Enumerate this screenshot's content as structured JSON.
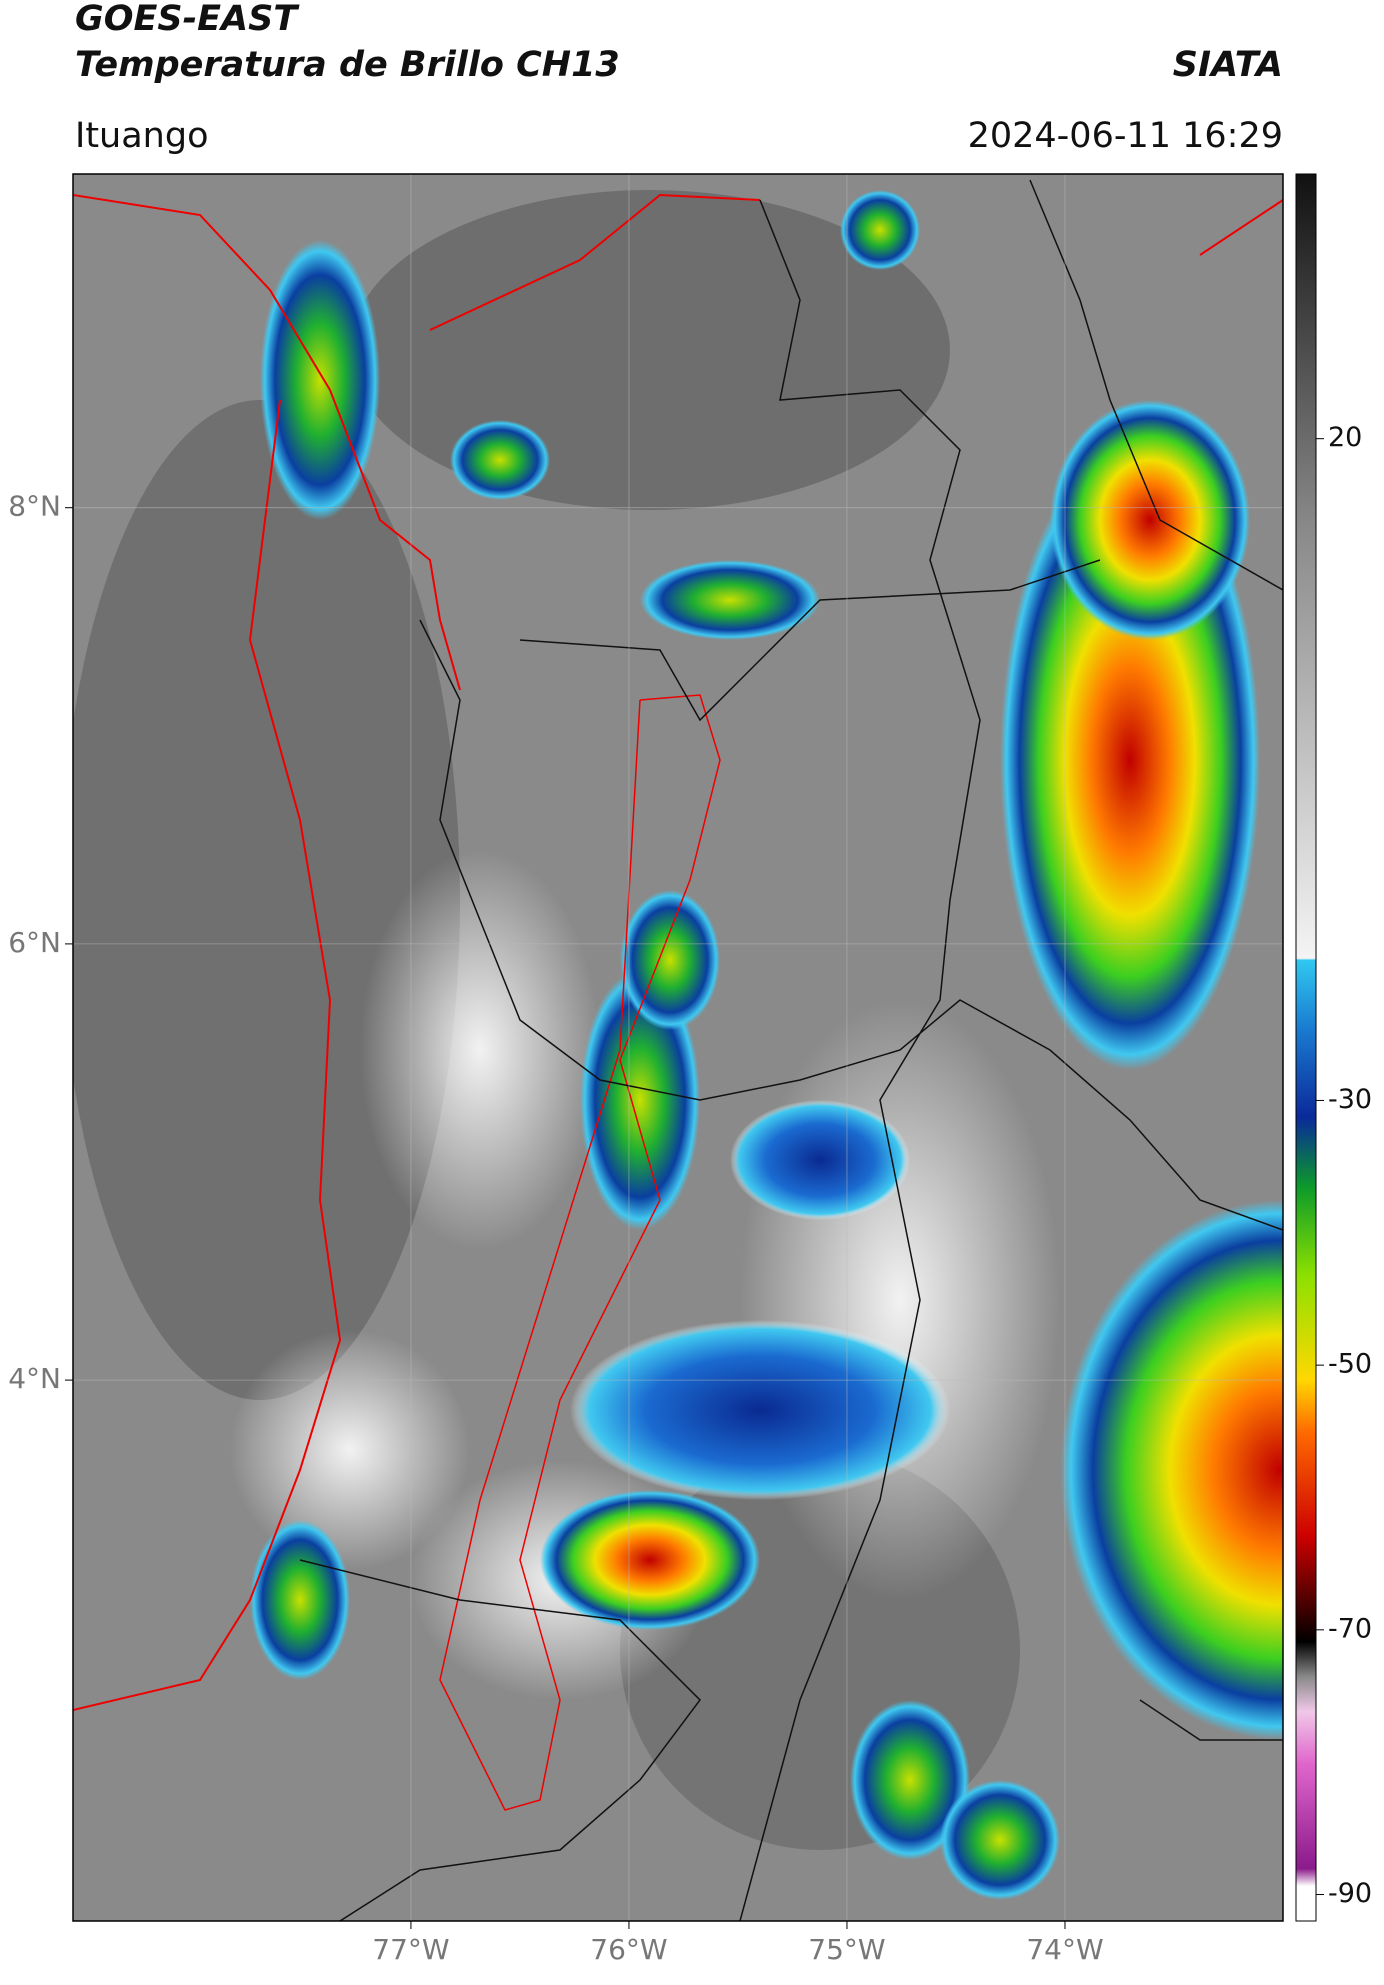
{
  "header": {
    "title": "GOES-EAST",
    "subtitle": "Temperatura de Brillo CH13",
    "source": "SIATA",
    "location": "Ituango",
    "datetime": "2024-06-11 16:29"
  },
  "map": {
    "xlim": [
      -78.55,
      -73.0
    ],
    "ylim": [
      1.52,
      9.53
    ],
    "xticks": [
      {
        "value": -77,
        "label": "77°W"
      },
      {
        "value": -76,
        "label": "76°W"
      },
      {
        "value": -75,
        "label": "75°W"
      },
      {
        "value": -74,
        "label": "74°W"
      }
    ],
    "yticks": [
      {
        "value": 8,
        "label": "8°N"
      },
      {
        "value": 6,
        "label": "6°N"
      },
      {
        "value": 4,
        "label": "4°N"
      }
    ]
  },
  "colorbar": {
    "lim": [
      -92,
      40
    ],
    "ticks": [
      20,
      -30,
      -50,
      -70,
      -90
    ]
  }
}
